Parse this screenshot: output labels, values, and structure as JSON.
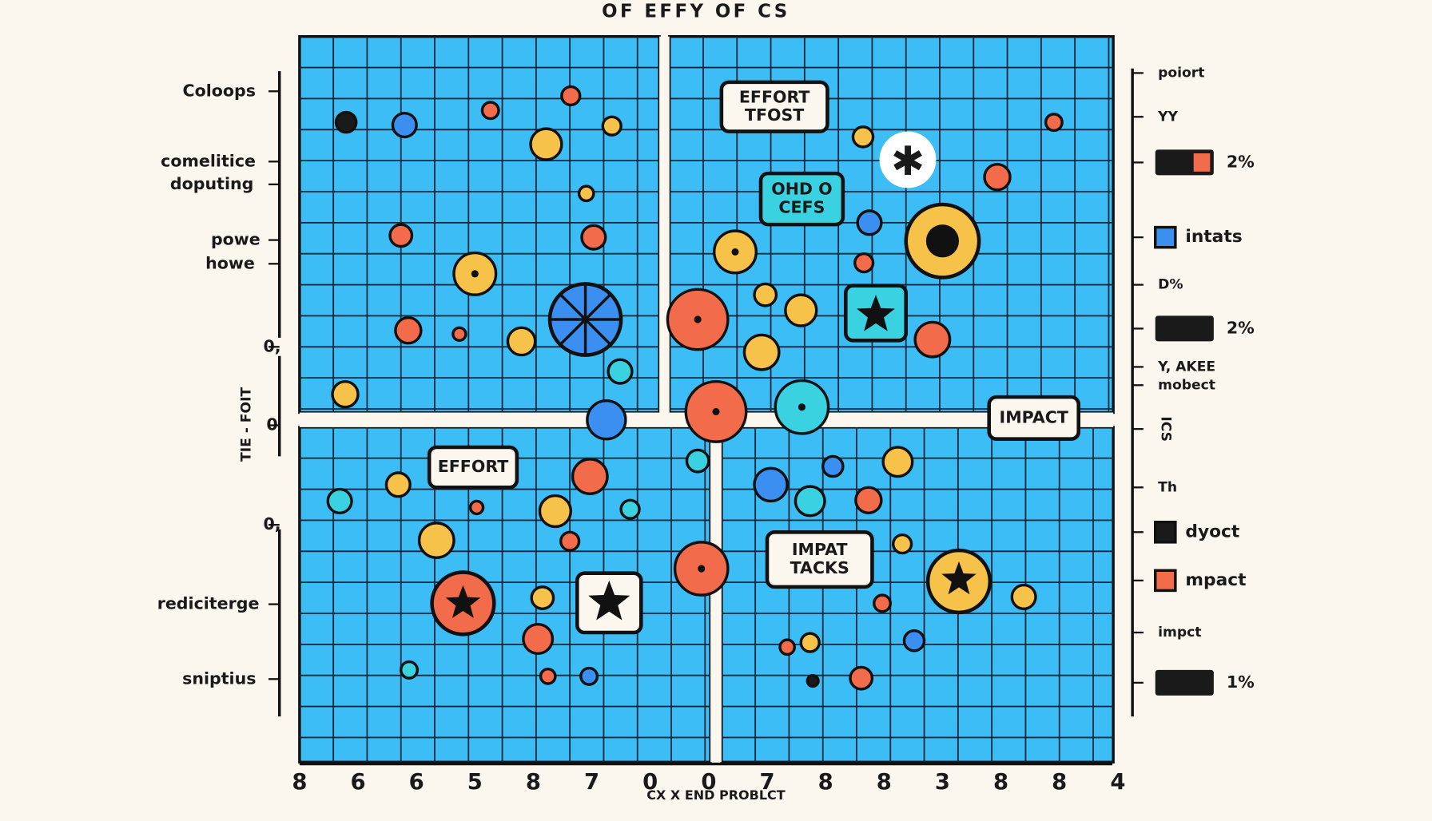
{
  "title": "OF EFFY OF CS",
  "y_labels": [
    "Coloops",
    "comelitice",
    "doputing",
    "powe",
    "howe",
    "0,",
    "0",
    "0,",
    "rediciterge",
    "sniptius"
  ],
  "y_axis_title": "TIE - FOIT",
  "callouts": [
    [
      "EFFORT",
      "TFOST"
    ],
    [
      "OHD O",
      "CEFS"
    ],
    [
      "IMPACT"
    ],
    [
      "EFFORT"
    ],
    [
      "IMPAT",
      "TACKS"
    ]
  ],
  "x_ticks": [
    "8",
    "6",
    "6",
    "5",
    "8",
    "7",
    "0",
    "0",
    "7",
    "8",
    "8",
    "3",
    "8",
    "8",
    "4"
  ],
  "x_label": "CX X END PROBLCT",
  "legend": [
    "poiort",
    "YY",
    "2%",
    "intats",
    "D%",
    "2%",
    "Y, AKEE",
    "mobect",
    "ICS",
    "Th",
    "dyoct",
    "mpact",
    "impct",
    "1%"
  ]
}
